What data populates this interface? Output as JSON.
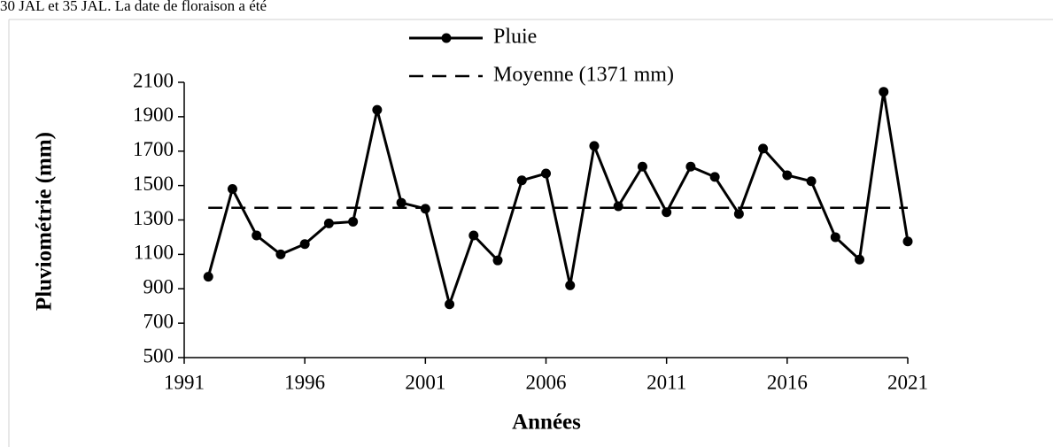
{
  "header_text": "30 JAL et 35 JAL. La date de floraison a été",
  "chart_data": {
    "type": "line",
    "xlabel": "Années",
    "ylabel": "Pluviométrie (mm)",
    "xlim": [
      1991,
      2021
    ],
    "xticks": [
      1991,
      1996,
      2001,
      2006,
      2011,
      2016,
      2021
    ],
    "ylim": [
      500,
      2100
    ],
    "yticks": [
      500,
      700,
      900,
      1100,
      1300,
      1500,
      1700,
      1900,
      2100
    ],
    "legend": "top",
    "series": [
      {
        "name": "Pluie",
        "color": "#000000",
        "markers": true,
        "dashed": false,
        "x": [
          1992,
          1993,
          1994,
          1995,
          1996,
          1997,
          1998,
          1999,
          2000,
          2001,
          2002,
          2003,
          2004,
          2005,
          2006,
          2007,
          2008,
          2009,
          2010,
          2011,
          2012,
          2013,
          2014,
          2015,
          2016,
          2017,
          2018,
          2019,
          2020,
          2021
        ],
        "values": [
          970,
          1480,
          1210,
          1100,
          1160,
          1280,
          1290,
          1940,
          1400,
          1365,
          810,
          1210,
          1065,
          1530,
          1570,
          920,
          1730,
          1380,
          1610,
          1345,
          1610,
          1550,
          1335,
          1715,
          1560,
          1525,
          1200,
          1070,
          2045,
          1175
        ]
      },
      {
        "name": "Moyenne (1371 mm)",
        "color": "#000000",
        "markers": false,
        "dashed": true,
        "x": [
          1992,
          2021
        ],
        "values": [
          1371,
          1371
        ]
      }
    ]
  }
}
